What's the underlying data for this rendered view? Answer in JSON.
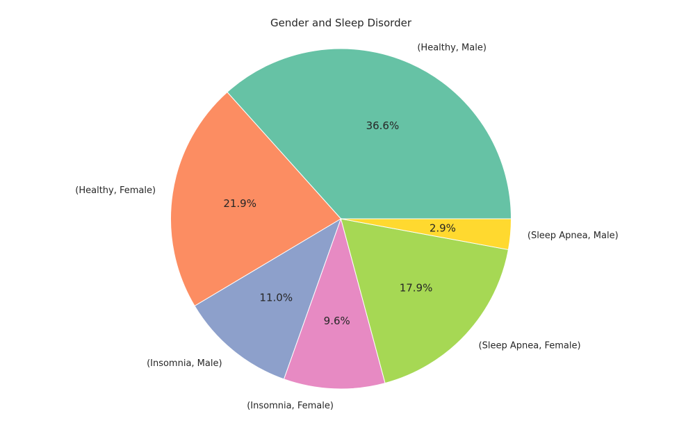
{
  "chart_data": {
    "type": "pie",
    "title": "Gender and Sleep Disorder",
    "start_angle_deg": 0,
    "direction": "counterclockwise",
    "slices": [
      {
        "label": "(Healthy, Male)",
        "value": 36.6,
        "pct_label": "36.6%",
        "color": "#66c2a5"
      },
      {
        "label": "(Healthy, Female)",
        "value": 21.9,
        "pct_label": "21.9%",
        "color": "#fc8d62"
      },
      {
        "label": "(Insomnia, Male)",
        "value": 11.0,
        "pct_label": "11.0%",
        "color": "#8da0cb"
      },
      {
        "label": "(Insomnia, Female)",
        "value": 9.6,
        "pct_label": "9.6%",
        "color": "#e78ac3"
      },
      {
        "label": "(Sleep Apnea, Female)",
        "value": 17.9,
        "pct_label": "17.9%",
        "color": "#a6d854"
      },
      {
        "label": "(Sleep Apnea, Male)",
        "value": 2.9,
        "pct_label": "2.9%",
        "color": "#ffd92f"
      }
    ]
  }
}
